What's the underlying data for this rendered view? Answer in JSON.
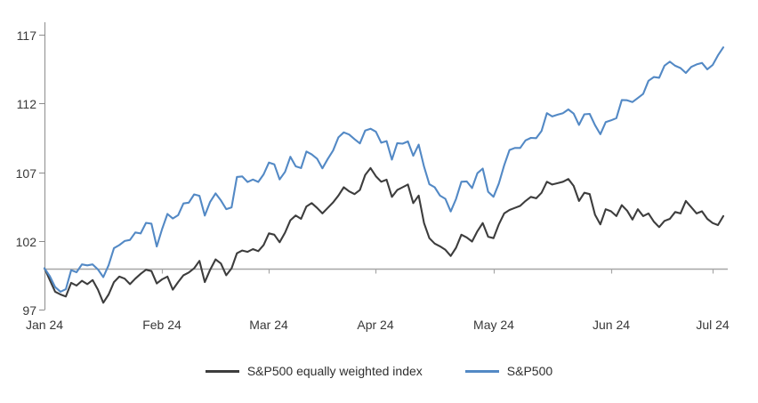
{
  "chart_data": {
    "type": "line",
    "title": "",
    "xlabel": "",
    "ylabel": "",
    "ylim": [
      97,
      117
    ],
    "y_ticks": [
      97,
      102,
      107,
      112,
      117
    ],
    "x_tick_labels": [
      "Jan 24",
      "Feb 24",
      "Mar 24",
      "Apr 24",
      "May 24",
      "Jun 24",
      "Jul 24"
    ],
    "x_tick_indices": [
      0,
      22,
      42,
      62,
      84,
      106,
      125
    ],
    "reference_line": 100,
    "grid": "off",
    "legend_position": "bottom-center",
    "series": [
      {
        "name": "S&P500 equally weighted index",
        "color": "#3D3D3D",
        "values": [
          100,
          99.15,
          98.3,
          98.1,
          97.95,
          98.95,
          98.75,
          99.1,
          98.85,
          99.15,
          98.45,
          97.5,
          98.1,
          99,
          99.4,
          99.25,
          98.85,
          99.25,
          99.6,
          99.9,
          99.8,
          98.9,
          99.2,
          99.4,
          98.45,
          99,
          99.5,
          99.7,
          100,
          100.55,
          99,
          99.9,
          100.65,
          100.35,
          99.5,
          100,
          101.1,
          101.3,
          101.2,
          101.4,
          101.25,
          101.7,
          102.55,
          102.45,
          101.9,
          102.6,
          103.5,
          103.85,
          103.6,
          104.5,
          104.75,
          104.4,
          104,
          104.4,
          104.8,
          105.3,
          105.9,
          105.6,
          105.4,
          105.7,
          106.8,
          107.3,
          106.7,
          106.3,
          106.45,
          105.2,
          105.7,
          105.9,
          106.1,
          104.75,
          105.3,
          103.3,
          102.2,
          101.8,
          101.6,
          101.35,
          100.9,
          101.5,
          102.45,
          102.25,
          101.95,
          102.7,
          103.3,
          102.3,
          102.2,
          103.2,
          104,
          104.25,
          104.4,
          104.55,
          104.9,
          105.2,
          105.1,
          105.5,
          106.3,
          106.1,
          106.2,
          106.3,
          106.5,
          106,
          104.9,
          105.5,
          105.4,
          103.9,
          103.2,
          104.3,
          104.15,
          103.8,
          104.6,
          104.2,
          103.55,
          104.3,
          103.8,
          104,
          103.4,
          103,
          103.45,
          103.6,
          104.1,
          104,
          104.9,
          104.45,
          104,
          104.15,
          103.6,
          103.3,
          103.15,
          103.8
        ]
      },
      {
        "name": "S&P500",
        "color": "#5389C5",
        "values": [
          100,
          99.43,
          98.64,
          98.3,
          98.48,
          99.87,
          99.72,
          100.29,
          100.22,
          100.29,
          99.92,
          99.36,
          100.23,
          101.47,
          101.69,
          101.99,
          102.07,
          102.61,
          102.54,
          103.31,
          103.25,
          101.59,
          102.86,
          103.96,
          103.63,
          103.87,
          104.72,
          104.78,
          105.38,
          105.28,
          103.84,
          104.84,
          105.45,
          104.94,
          104.31,
          104.44,
          106.65,
          106.69,
          106.28,
          106.46,
          106.29,
          106.84,
          107.7,
          107.57,
          106.47,
          107.02,
          108.12,
          107.42,
          107.3,
          108.5,
          108.29,
          107.98,
          107.28,
          107.96,
          108.57,
          109.53,
          109.89,
          109.74,
          109.4,
          109.09,
          110.03,
          110.16,
          109.94,
          109.14,
          109.26,
          107.91,
          109.11,
          109.07,
          109.23,
          108.19,
          109,
          107.41,
          106.12,
          105.9,
          105.29,
          105.06,
          104.14,
          105.05,
          106.3,
          106.33,
          105.84,
          106.92,
          107.26,
          105.57,
          105.21,
          106.17,
          107.5,
          108.61,
          108.76,
          108.76,
          109.31,
          109.49,
          109.47,
          110,
          111.29,
          111.05,
          111.18,
          111.29,
          111.56,
          111.26,
          110.44,
          111.21,
          111.24,
          110.42,
          109.76,
          110.64,
          110.77,
          110.93,
          112.25,
          112.23,
          112.1,
          112.39,
          112.69,
          113.65,
          113.92,
          113.87,
          114.75,
          115.04,
          114.74,
          114.57,
          114.22,
          114.66,
          114.84,
          114.95,
          114.48,
          114.79,
          115.5,
          116.08
        ]
      }
    ]
  },
  "colors": {
    "axis": "#8C8C8C",
    "reference_line": "#A6A6A6",
    "tick_text": "#383838",
    "background": "#FFFFFF"
  }
}
